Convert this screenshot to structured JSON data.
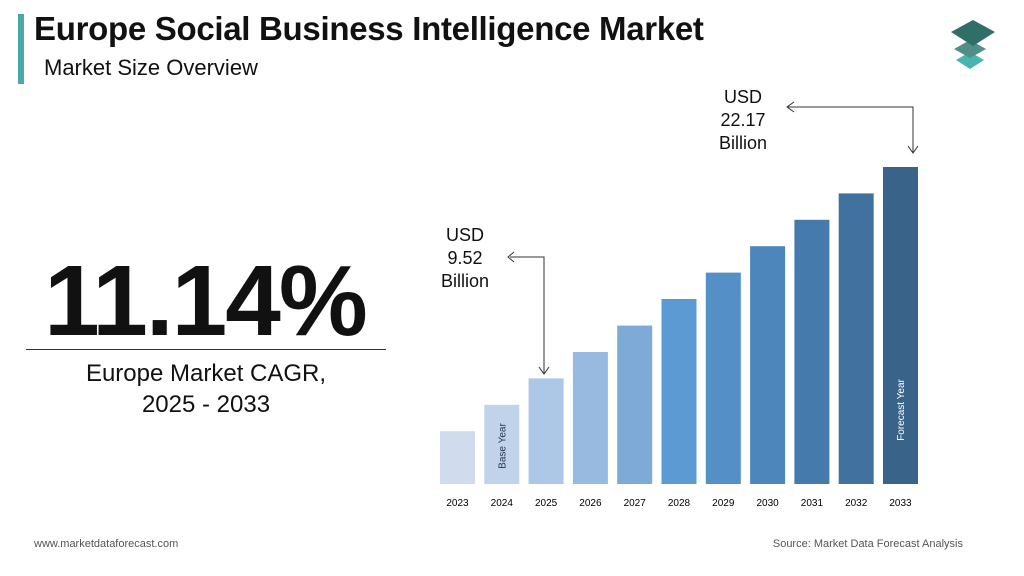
{
  "header": {
    "title": "Europe Social Business Intelligence Market",
    "subtitle": "Market Size Overview"
  },
  "kpi": {
    "value": "11.14%",
    "label_line1": "Europe Market CAGR,",
    "label_line2": "2025 - 2033"
  },
  "footer": {
    "website": "www.marketdataforecast.com",
    "source": "Source: Market Data Forecast Analysis"
  },
  "logo": {
    "colors": [
      "#2f6f67",
      "#4f8f88",
      "#49b3ae"
    ]
  },
  "chart_data": {
    "type": "bar",
    "categories": [
      "2023",
      "2024",
      "2025",
      "2026",
      "2027",
      "2028",
      "2029",
      "2030",
      "2031",
      "2032",
      "2033"
    ],
    "values": [
      6.36,
      7.94,
      9.52,
      11.1,
      12.68,
      14.27,
      15.85,
      17.43,
      19.01,
      20.59,
      22.17
    ],
    "ylim": [
      3.2,
      22.17
    ],
    "grid": false,
    "bar_labels": {
      "1": "Base Year",
      "10": "Forecast Year"
    },
    "annotations": [
      {
        "category": "2025",
        "line1": "USD",
        "line2": "9.52",
        "line3": "Billion"
      },
      {
        "category": "2033",
        "line1": "USD",
        "line2": "22.17",
        "line3": "Billion"
      }
    ],
    "colors": [
      "#d0dced",
      "#c0d3ea",
      "#adc7e6",
      "#98b9e0",
      "#7eaad8",
      "#5b9ad2",
      "#5490c6",
      "#4d86bb",
      "#457aac",
      "#40719f",
      "#3a6389"
    ]
  }
}
